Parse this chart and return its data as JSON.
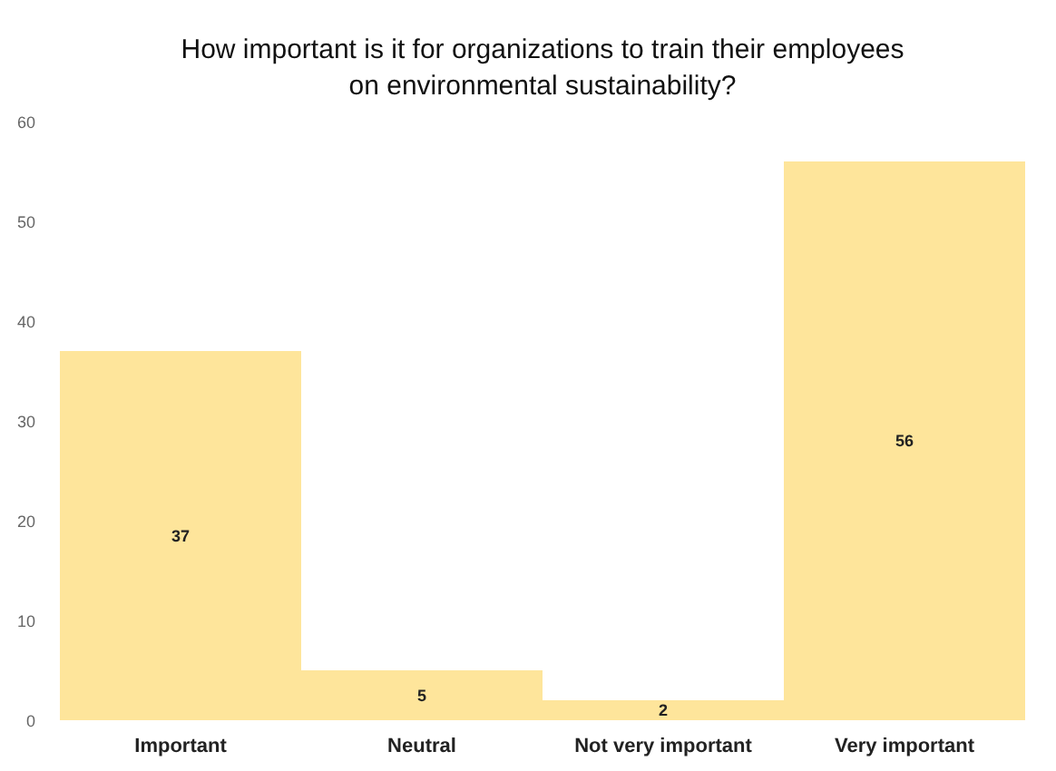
{
  "chart_data": {
    "type": "bar",
    "title": "How important is it for organizations to train their employees on environmental sustainability?",
    "categories": [
      "Important",
      "Neutral",
      "Not very important",
      "Very important"
    ],
    "values": [
      37,
      5,
      2,
      56
    ],
    "color": "#fee59b",
    "ylim": [
      0,
      60
    ],
    "yticks": [
      0,
      10,
      20,
      30,
      40,
      50,
      60
    ],
    "grid": false,
    "data_labels": true
  }
}
